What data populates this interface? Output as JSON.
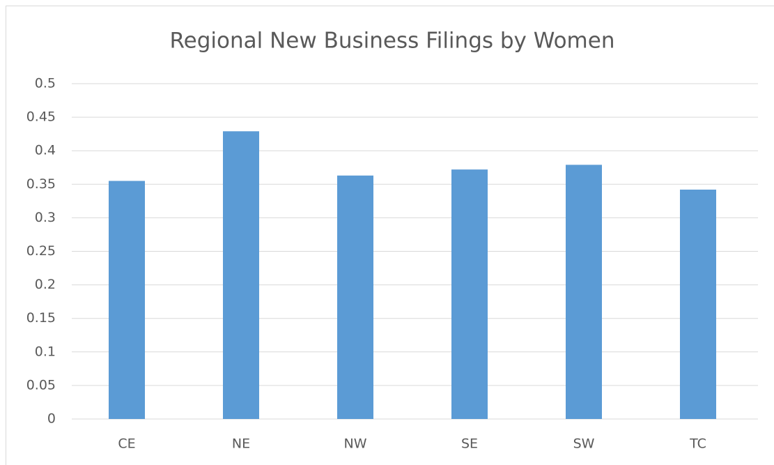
{
  "chart_data": {
    "type": "bar",
    "title": "Regional New Business Filings by Women",
    "categories": [
      "CE",
      "NE",
      "NW",
      "SE",
      "SW",
      "TC"
    ],
    "values": [
      0.355,
      0.429,
      0.363,
      0.372,
      0.379,
      0.342
    ],
    "color": "#5b9bd5",
    "ylim": [
      0,
      0.5
    ],
    "yticks": [
      0,
      0.05,
      0.1,
      0.15,
      0.2,
      0.25,
      0.3,
      0.35,
      0.4,
      0.45,
      0.5
    ],
    "grid": true
  }
}
